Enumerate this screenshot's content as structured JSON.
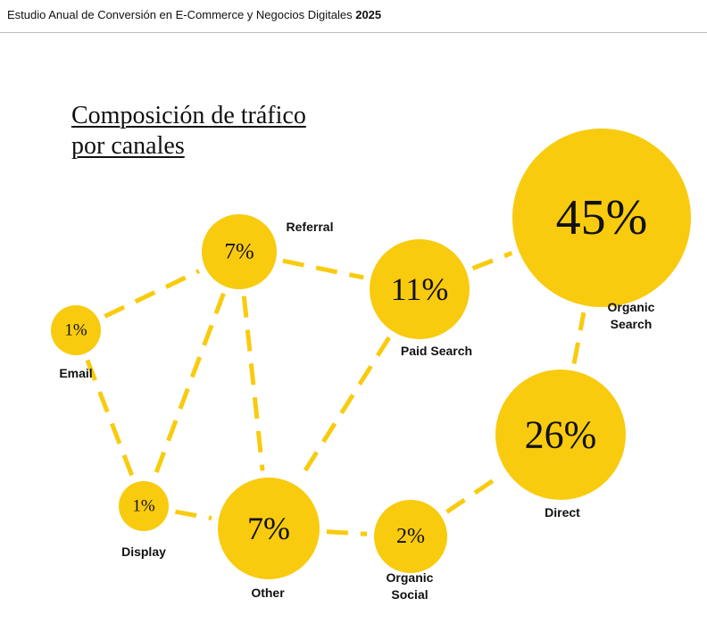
{
  "header": {
    "title_prefix": "Estudio Anual de Conversión en E-Commerce y Negocios Digitales",
    "title_year": "2025"
  },
  "title": {
    "line1": "Composición de tráfico",
    "line2": "por canales"
  },
  "colors": {
    "node": "#F9CB0E",
    "link": "#F9CB0E",
    "text": "#111111"
  },
  "chart_data": {
    "type": "network",
    "nodes": [
      {
        "id": "email",
        "label": "Email",
        "value": 1,
        "value_label": "1%"
      },
      {
        "id": "referral",
        "label": "Referral",
        "value": 7,
        "value_label": "7%"
      },
      {
        "id": "paid_search",
        "label": "Paid Search",
        "value": 11,
        "value_label": "11%"
      },
      {
        "id": "organic_search",
        "label": "Organic\nSearch",
        "value": 45,
        "value_label": "45%"
      },
      {
        "id": "display",
        "label": "Display",
        "value": 1,
        "value_label": "1%"
      },
      {
        "id": "other",
        "label": "Other",
        "value": 7,
        "value_label": "7%"
      },
      {
        "id": "organic_social",
        "label": "Organic\nSocial",
        "value": 2,
        "value_label": "2%"
      },
      {
        "id": "direct",
        "label": "Direct",
        "value": 26,
        "value_label": "26%"
      }
    ],
    "links": [
      [
        "email",
        "referral"
      ],
      [
        "email",
        "display"
      ],
      [
        "referral",
        "paid_search"
      ],
      [
        "referral",
        "display"
      ],
      [
        "referral",
        "other"
      ],
      [
        "paid_search",
        "organic_search"
      ],
      [
        "paid_search",
        "other"
      ],
      [
        "display",
        "other"
      ],
      [
        "other",
        "organic_social"
      ],
      [
        "organic_social",
        "direct"
      ],
      [
        "direct",
        "organic_search"
      ]
    ]
  }
}
